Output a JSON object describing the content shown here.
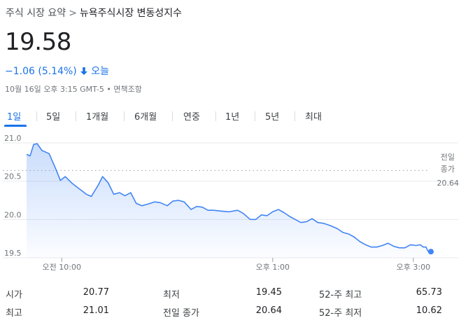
{
  "breadcrumb": {
    "parent": "주식 시장 요약",
    "separator": ">",
    "current": "뉴욕주식시장 변동성지수"
  },
  "quote": {
    "price": "19.58",
    "change": "−1.06 (5.14%)",
    "period": "오늘",
    "timestamp": "10월 16일 오후 3:15 GMT-5",
    "disclaimer": "면책조항",
    "dot": "•",
    "change_color": "#1a73e8"
  },
  "tabs": [
    "1일",
    "5일",
    "1개월",
    "6개월",
    "연중",
    "1년",
    "5년",
    "최대"
  ],
  "selected_tab": "1일",
  "chart_data": {
    "type": "area",
    "x_ticks": [
      "오전 10:00",
      "오후 1:00",
      "오후 3:00"
    ],
    "y_ticks": [
      "21.0",
      "20.5",
      "20.0",
      "19.5"
    ],
    "ylim": [
      19.5,
      21.0
    ],
    "x_range_hours": [
      9.5,
      15.25
    ],
    "x_tick_hours": [
      10,
      13,
      15
    ],
    "prev_close_label": "전일 종가",
    "prev_close_value": 20.64,
    "prev_close_text": "20.64",
    "line_color": "#4285f4",
    "series": [
      {
        "values": [
          [
            9.5,
            20.85
          ],
          [
            9.55,
            20.83
          ],
          [
            9.6,
            20.98
          ],
          [
            9.65,
            20.99
          ],
          [
            9.72,
            20.9
          ],
          [
            9.82,
            20.86
          ],
          [
            9.92,
            20.65
          ],
          [
            9.98,
            20.51
          ],
          [
            10.05,
            20.56
          ],
          [
            10.15,
            20.47
          ],
          [
            10.25,
            20.4
          ],
          [
            10.35,
            20.33
          ],
          [
            10.42,
            20.3
          ],
          [
            10.52,
            20.45
          ],
          [
            10.58,
            20.56
          ],
          [
            10.66,
            20.48
          ],
          [
            10.74,
            20.33
          ],
          [
            10.82,
            20.35
          ],
          [
            10.9,
            20.31
          ],
          [
            10.98,
            20.35
          ],
          [
            11.06,
            20.21
          ],
          [
            11.14,
            20.18
          ],
          [
            11.22,
            20.2
          ],
          [
            11.32,
            20.23
          ],
          [
            11.4,
            20.22
          ],
          [
            11.5,
            20.18
          ],
          [
            11.58,
            20.24
          ],
          [
            11.66,
            20.25
          ],
          [
            11.74,
            20.23
          ],
          [
            11.84,
            20.13
          ],
          [
            11.92,
            20.17
          ],
          [
            12.0,
            20.16
          ],
          [
            12.08,
            20.12
          ],
          [
            12.16,
            20.12
          ],
          [
            12.26,
            20.11
          ],
          [
            12.38,
            20.1
          ],
          [
            12.5,
            20.12
          ],
          [
            12.58,
            20.08
          ],
          [
            12.68,
            20.0
          ],
          [
            12.76,
            20.0
          ],
          [
            12.84,
            20.06
          ],
          [
            12.92,
            20.05
          ],
          [
            13.0,
            20.1
          ],
          [
            13.08,
            20.13
          ],
          [
            13.16,
            20.09
          ],
          [
            13.24,
            20.04
          ],
          [
            13.32,
            20.0
          ],
          [
            13.4,
            19.96
          ],
          [
            13.48,
            19.97
          ],
          [
            13.56,
            20.01
          ],
          [
            13.64,
            19.96
          ],
          [
            13.72,
            19.95
          ],
          [
            13.82,
            19.92
          ],
          [
            13.92,
            19.88
          ],
          [
            14.0,
            19.83
          ],
          [
            14.08,
            19.81
          ],
          [
            14.16,
            19.77
          ],
          [
            14.24,
            19.71
          ],
          [
            14.32,
            19.67
          ],
          [
            14.4,
            19.64
          ],
          [
            14.48,
            19.64
          ],
          [
            14.56,
            19.66
          ],
          [
            14.64,
            19.69
          ],
          [
            14.72,
            19.65
          ],
          [
            14.8,
            19.63
          ],
          [
            14.88,
            19.63
          ],
          [
            14.96,
            19.67
          ],
          [
            15.04,
            19.66
          ],
          [
            15.1,
            19.67
          ],
          [
            15.14,
            19.64
          ],
          [
            15.18,
            19.64
          ],
          [
            15.2,
            19.6
          ],
          [
            15.22,
            19.57
          ],
          [
            15.24,
            19.56
          ],
          [
            15.25,
            19.58
          ]
        ]
      }
    ]
  },
  "stats": {
    "open_label": "시가",
    "open_value": "20.77",
    "high_label": "최고",
    "high_value": "21.01",
    "low_label": "최저",
    "low_value": "19.45",
    "prev_close_label": "전일 종가",
    "prev_close_value": "20.64",
    "wk52_high_label": "52-주 최고",
    "wk52_high_value": "65.73",
    "wk52_low_label": "52-주 최저",
    "wk52_low_value": "10.62"
  }
}
